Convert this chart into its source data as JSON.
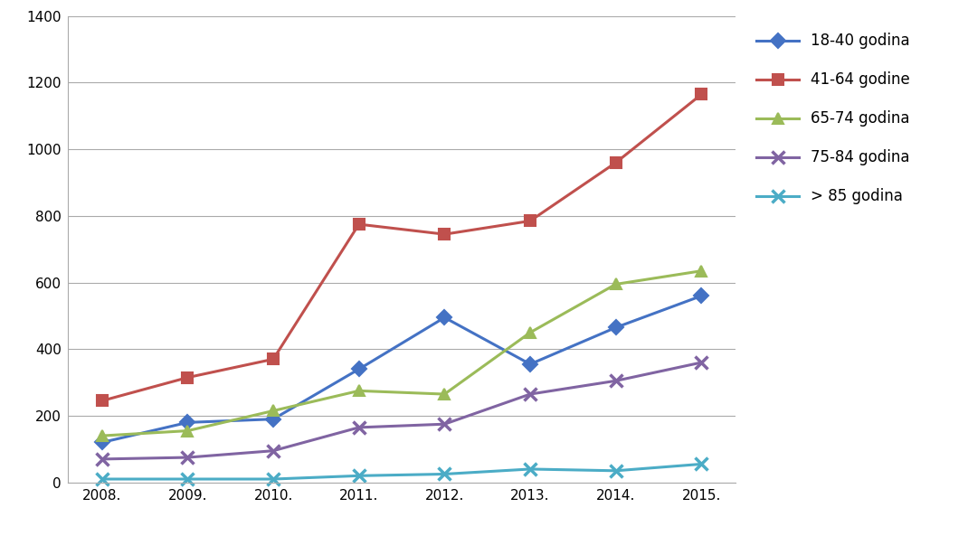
{
  "years": [
    "2008.",
    "2009.",
    "2010.",
    "2011.",
    "2012.",
    "2013.",
    "2014.",
    "2015."
  ],
  "series": [
    {
      "label": "18-40 godina",
      "color": "#4472C4",
      "marker": "D",
      "values": [
        120,
        180,
        190,
        340,
        495,
        355,
        465,
        560
      ]
    },
    {
      "label": "41-64 godine",
      "color": "#C0504D",
      "marker": "s",
      "values": [
        245,
        315,
        370,
        775,
        745,
        785,
        960,
        1165
      ]
    },
    {
      "label": "65-74 godina",
      "color": "#9BBB59",
      "marker": "^",
      "values": [
        140,
        155,
        215,
        275,
        265,
        450,
        595,
        635
      ]
    },
    {
      "label": "75-84 godina",
      "color": "#8064A2",
      "marker": "x",
      "values": [
        70,
        75,
        95,
        165,
        175,
        265,
        305,
        360
      ]
    },
    {
      "label": "> 85 godina",
      "color": "#4BACC6",
      "marker": "x",
      "values": [
        10,
        10,
        10,
        20,
        25,
        40,
        35,
        55
      ]
    }
  ],
  "ylim": [
    0,
    1400
  ],
  "yticks": [
    0,
    200,
    400,
    600,
    800,
    1000,
    1200,
    1400
  ],
  "background_color": "#FFFFFF",
  "grid_color": "#AAAAAA",
  "legend_fontsize": 12,
  "tick_fontsize": 11
}
